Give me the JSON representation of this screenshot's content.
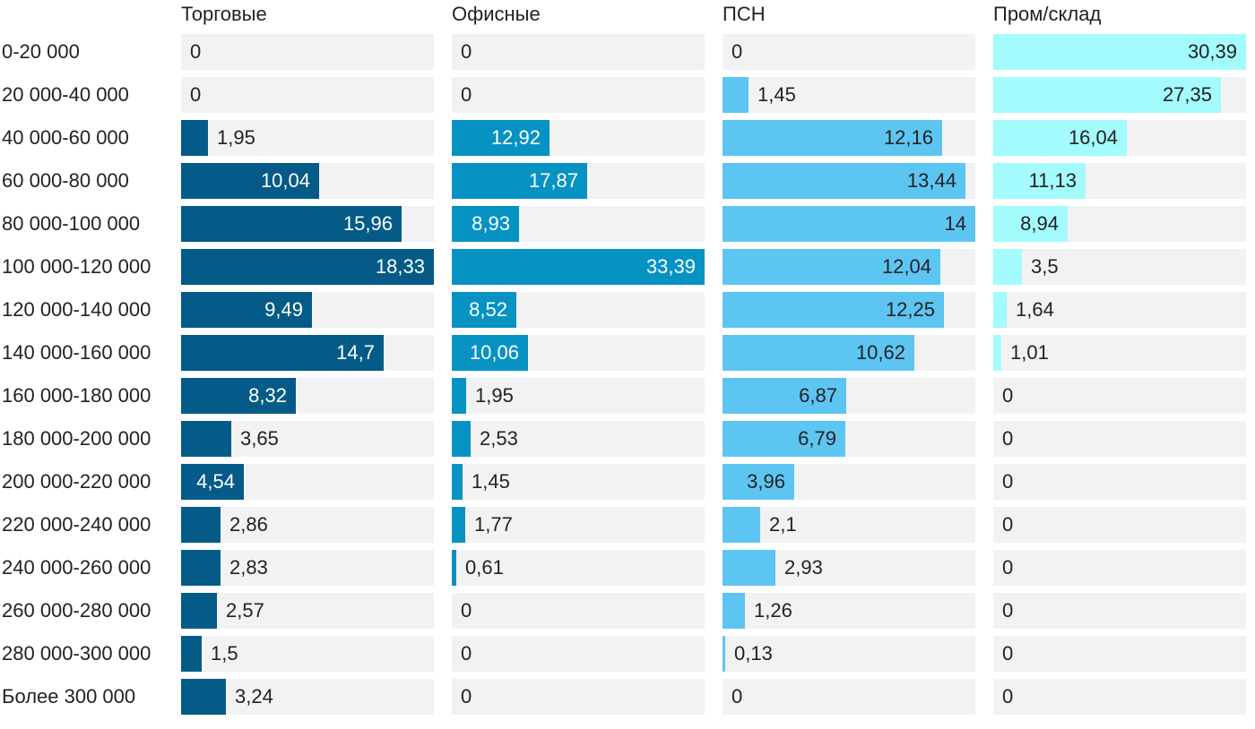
{
  "chart_data": {
    "type": "bar",
    "title": "",
    "categories": [
      "0-20 000",
      "20 000-40 000",
      "40 000-60 000",
      "60 000-80 000",
      "80 000-100 000",
      "100 000-120 000",
      "120 000-140 000",
      "140 000-160 000",
      "160 000-180 000",
      "180 000-200 000",
      "200 000-220 000",
      "220 000-240 000",
      "240 000-260 000",
      "260 000-280 000",
      "280 000-300 000",
      "Более 300 000"
    ],
    "series": [
      {
        "name": "Торговые",
        "color": "#045b87",
        "label_color": "#ffffff",
        "values": [
          0,
          0,
          1.95,
          10.04,
          15.96,
          18.33,
          9.49,
          14.7,
          8.32,
          3.65,
          4.54,
          2.86,
          2.83,
          2.57,
          1.5,
          3.24
        ],
        "labels": [
          "0",
          "0",
          "1,95",
          "10,04",
          "15,96",
          "18,33",
          "9,49",
          "14,7",
          "8,32",
          "3,65",
          "4,54",
          "2,86",
          "2,83",
          "2,57",
          "1,5",
          "3,24"
        ],
        "max": 18.33
      },
      {
        "name": "Офисные",
        "color": "#0693c4",
        "label_color": "#ffffff",
        "values": [
          0,
          0,
          12.92,
          17.87,
          8.93,
          33.39,
          8.52,
          10.06,
          1.95,
          2.53,
          1.45,
          1.77,
          0.61,
          0,
          0,
          0
        ],
        "labels": [
          "0",
          "0",
          "12,92",
          "17,87",
          "8,93",
          "33,39",
          "8,52",
          "10,06",
          "1,95",
          "2,53",
          "1,45",
          "1,77",
          "0,61",
          "0",
          "0",
          "0"
        ],
        "max": 33.39
      },
      {
        "name": "ПСН",
        "color": "#5dc5f2",
        "label_color": "#222222",
        "values": [
          0,
          1.45,
          12.16,
          13.44,
          14,
          12.04,
          12.25,
          10.62,
          6.87,
          6.79,
          3.96,
          2.1,
          2.93,
          1.26,
          0.13,
          0
        ],
        "labels": [
          "0",
          "1,45",
          "12,16",
          "13,44",
          "14",
          "12,04",
          "12,25",
          "10,62",
          "6,87",
          "6,79",
          "3,96",
          "2,1",
          "2,93",
          "1,26",
          "0,13",
          "0"
        ],
        "max": 14
      },
      {
        "name": "Пром/склад",
        "color": "#a3fbfd",
        "label_color": "#222222",
        "values": [
          30.39,
          27.35,
          16.04,
          11.13,
          8.94,
          3.5,
          1.64,
          1.01,
          0,
          0,
          0,
          0,
          0,
          0,
          0,
          0
        ],
        "labels": [
          "30,39",
          "27,35",
          "16,04",
          "11,13",
          "8,94",
          "3,5",
          "1,64",
          "1,01",
          "0",
          "0",
          "0",
          "0",
          "0",
          "0",
          "0",
          "0"
        ],
        "max": 30.39
      }
    ],
    "track_color": "#f2f2f2",
    "grid": false,
    "legend": "column headers"
  }
}
